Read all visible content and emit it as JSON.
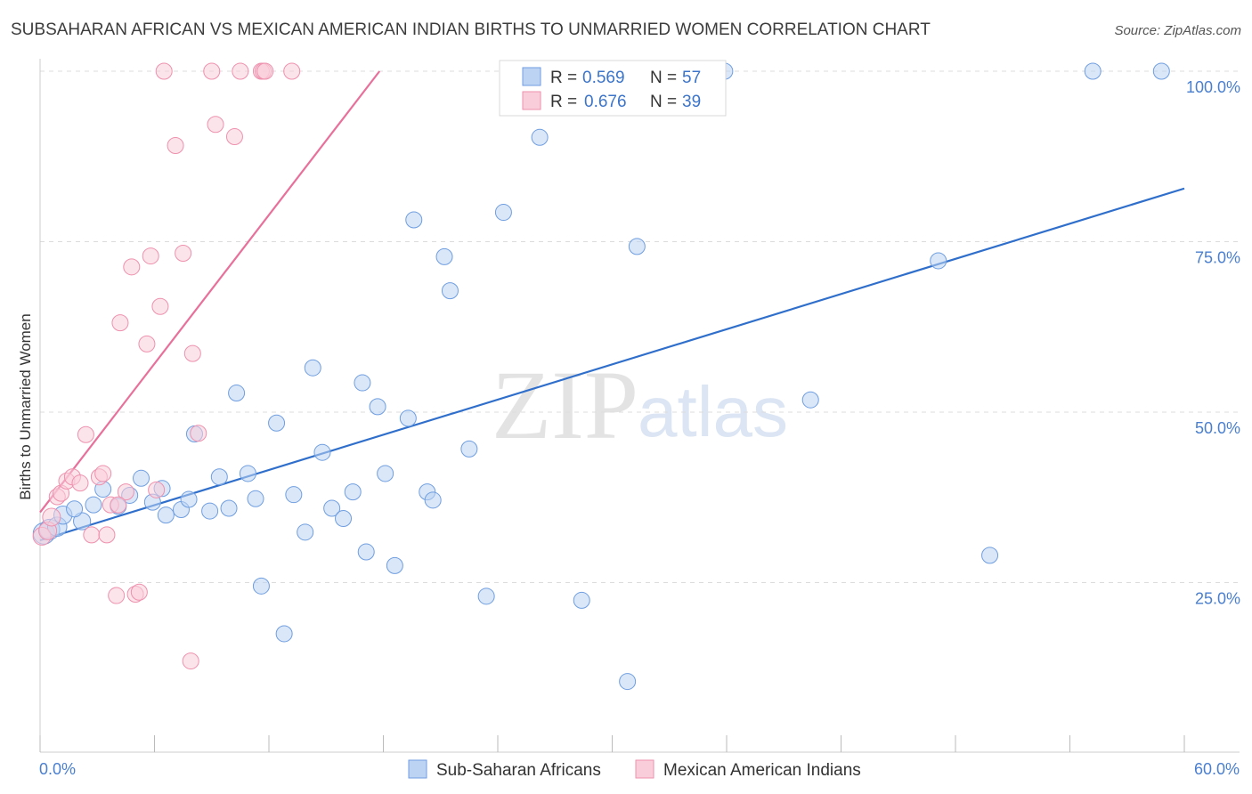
{
  "header": {
    "title": "SUBSAHARAN AFRICAN VS MEXICAN AMERICAN INDIAN BIRTHS TO UNMARRIED WOMEN CORRELATION CHART",
    "source": "Source: ZipAtlas.com"
  },
  "watermark": {
    "zip": "ZIP",
    "atlas": "atlas"
  },
  "legend": {
    "r_label": "R =",
    "n_label": "N =",
    "entries": [
      {
        "r": "0.569",
        "n": "57",
        "color": "#a9c6ef",
        "stroke": "#6f9ee0"
      },
      {
        "r": "0.676",
        "n": "39",
        "color": "#f8c2d2",
        "stroke": "#ee91ae"
      }
    ]
  },
  "bottom_legend": [
    {
      "label": "Sub-Saharan Africans",
      "color": "#bcd3f3",
      "stroke": "#6f9ee0"
    },
    {
      "label": "Mexican American Indians",
      "color": "#f9cdda",
      "stroke": "#ee91ae"
    }
  ],
  "chart_data": {
    "type": "scatter",
    "title": "SUBSAHARAN AFRICAN VS MEXICAN AMERICAN INDIAN BIRTHS TO UNMARRIED WOMEN CORRELATION CHART",
    "xlabel": "",
    "ylabel": "Births to Unmarried Women",
    "xlim": [
      0,
      60
    ],
    "ylim": [
      0,
      102
    ],
    "x_tick_labels": [
      "0.0%",
      "60.0%"
    ],
    "y_ticks": [
      25,
      50,
      75,
      100
    ],
    "y_tick_labels": [
      "25.0%",
      "50.0%",
      "75.0%",
      "100.0%"
    ],
    "grid": "horizontal dashed",
    "legend_position": "top-center",
    "series": [
      {
        "name": "Sub-Saharan Africans",
        "color": "#6f9ee0",
        "fill": "#bcd3f3",
        "trend": {
          "x": [
            0,
            60
          ],
          "y": [
            31.2,
            82.8
          ],
          "color": "#2f6fcb"
        },
        "points": [
          [
            0.2,
            32.2
          ],
          [
            0.5,
            32.8
          ],
          [
            0.9,
            33.2
          ],
          [
            1.2,
            34.9
          ],
          [
            2.2,
            34.0
          ],
          [
            1.8,
            35.8
          ],
          [
            2.8,
            36.4
          ],
          [
            3.3,
            38.7
          ],
          [
            4.1,
            36.2
          ],
          [
            4.7,
            37.8
          ],
          [
            5.3,
            40.3
          ],
          [
            5.9,
            36.8
          ],
          [
            6.4,
            38.8
          ],
          [
            6.6,
            34.9
          ],
          [
            7.4,
            35.7
          ],
          [
            7.8,
            37.2
          ],
          [
            8.1,
            46.8
          ],
          [
            8.9,
            35.5
          ],
          [
            9.4,
            40.5
          ],
          [
            9.9,
            35.9
          ],
          [
            10.3,
            52.8
          ],
          [
            10.9,
            41.0
          ],
          [
            11.3,
            37.3
          ],
          [
            11.6,
            24.5
          ],
          [
            12.4,
            48.4
          ],
          [
            12.8,
            17.5
          ],
          [
            13.3,
            37.9
          ],
          [
            13.9,
            32.4
          ],
          [
            14.3,
            56.5
          ],
          [
            14.8,
            44.1
          ],
          [
            15.3,
            35.9
          ],
          [
            15.9,
            34.4
          ],
          [
            16.4,
            38.3
          ],
          [
            16.9,
            54.3
          ],
          [
            17.1,
            29.5
          ],
          [
            17.7,
            50.8
          ],
          [
            18.1,
            41.0
          ],
          [
            18.6,
            27.5
          ],
          [
            19.3,
            49.1
          ],
          [
            19.6,
            78.2
          ],
          [
            20.3,
            38.3
          ],
          [
            20.6,
            37.1
          ],
          [
            21.2,
            72.8
          ],
          [
            21.5,
            67.8
          ],
          [
            22.5,
            44.6
          ],
          [
            23.4,
            23.0
          ],
          [
            24.3,
            79.3
          ],
          [
            26.2,
            90.3
          ],
          [
            28.4,
            22.4
          ],
          [
            31.3,
            74.3
          ],
          [
            30.8,
            10.5
          ],
          [
            35.9,
            100.0
          ],
          [
            40.4,
            51.8
          ],
          [
            47.1,
            72.2
          ],
          [
            49.8,
            29.0
          ],
          [
            55.2,
            100.0
          ],
          [
            58.8,
            100.0
          ]
        ]
      },
      {
        "name": "Mexican American Indians",
        "color": "#ee91ae",
        "fill": "#f9cdda",
        "trend": {
          "x": [
            0,
            17.8
          ],
          "y": [
            35.3,
            100.0
          ],
          "color": "#e8709a"
        },
        "points": [
          [
            0.1,
            31.8
          ],
          [
            0.4,
            32.6
          ],
          [
            0.6,
            34.6
          ],
          [
            0.9,
            37.6
          ],
          [
            1.1,
            38.1
          ],
          [
            1.4,
            39.9
          ],
          [
            1.7,
            40.5
          ],
          [
            2.1,
            39.6
          ],
          [
            2.4,
            46.7
          ],
          [
            2.7,
            32.0
          ],
          [
            3.1,
            40.5
          ],
          [
            3.3,
            41.0
          ],
          [
            3.5,
            32.0
          ],
          [
            3.7,
            36.4
          ],
          [
            4.0,
            23.1
          ],
          [
            4.2,
            63.1
          ],
          [
            4.5,
            38.3
          ],
          [
            4.8,
            71.3
          ],
          [
            5.0,
            23.3
          ],
          [
            5.2,
            23.6
          ],
          [
            5.6,
            60.0
          ],
          [
            5.8,
            72.9
          ],
          [
            6.1,
            38.6
          ],
          [
            6.3,
            65.5
          ],
          [
            6.5,
            100.0
          ],
          [
            7.1,
            89.1
          ],
          [
            7.5,
            73.3
          ],
          [
            7.9,
            13.5
          ],
          [
            8.0,
            58.6
          ],
          [
            8.3,
            46.9
          ],
          [
            9.0,
            100.0
          ],
          [
            9.2,
            92.2
          ],
          [
            10.2,
            90.4
          ],
          [
            10.5,
            100.0
          ],
          [
            11.6,
            100.0
          ],
          [
            11.7,
            100.0
          ],
          [
            11.8,
            100.0
          ],
          [
            13.2,
            100.0
          ],
          [
            4.1,
            36.4
          ]
        ]
      }
    ]
  }
}
